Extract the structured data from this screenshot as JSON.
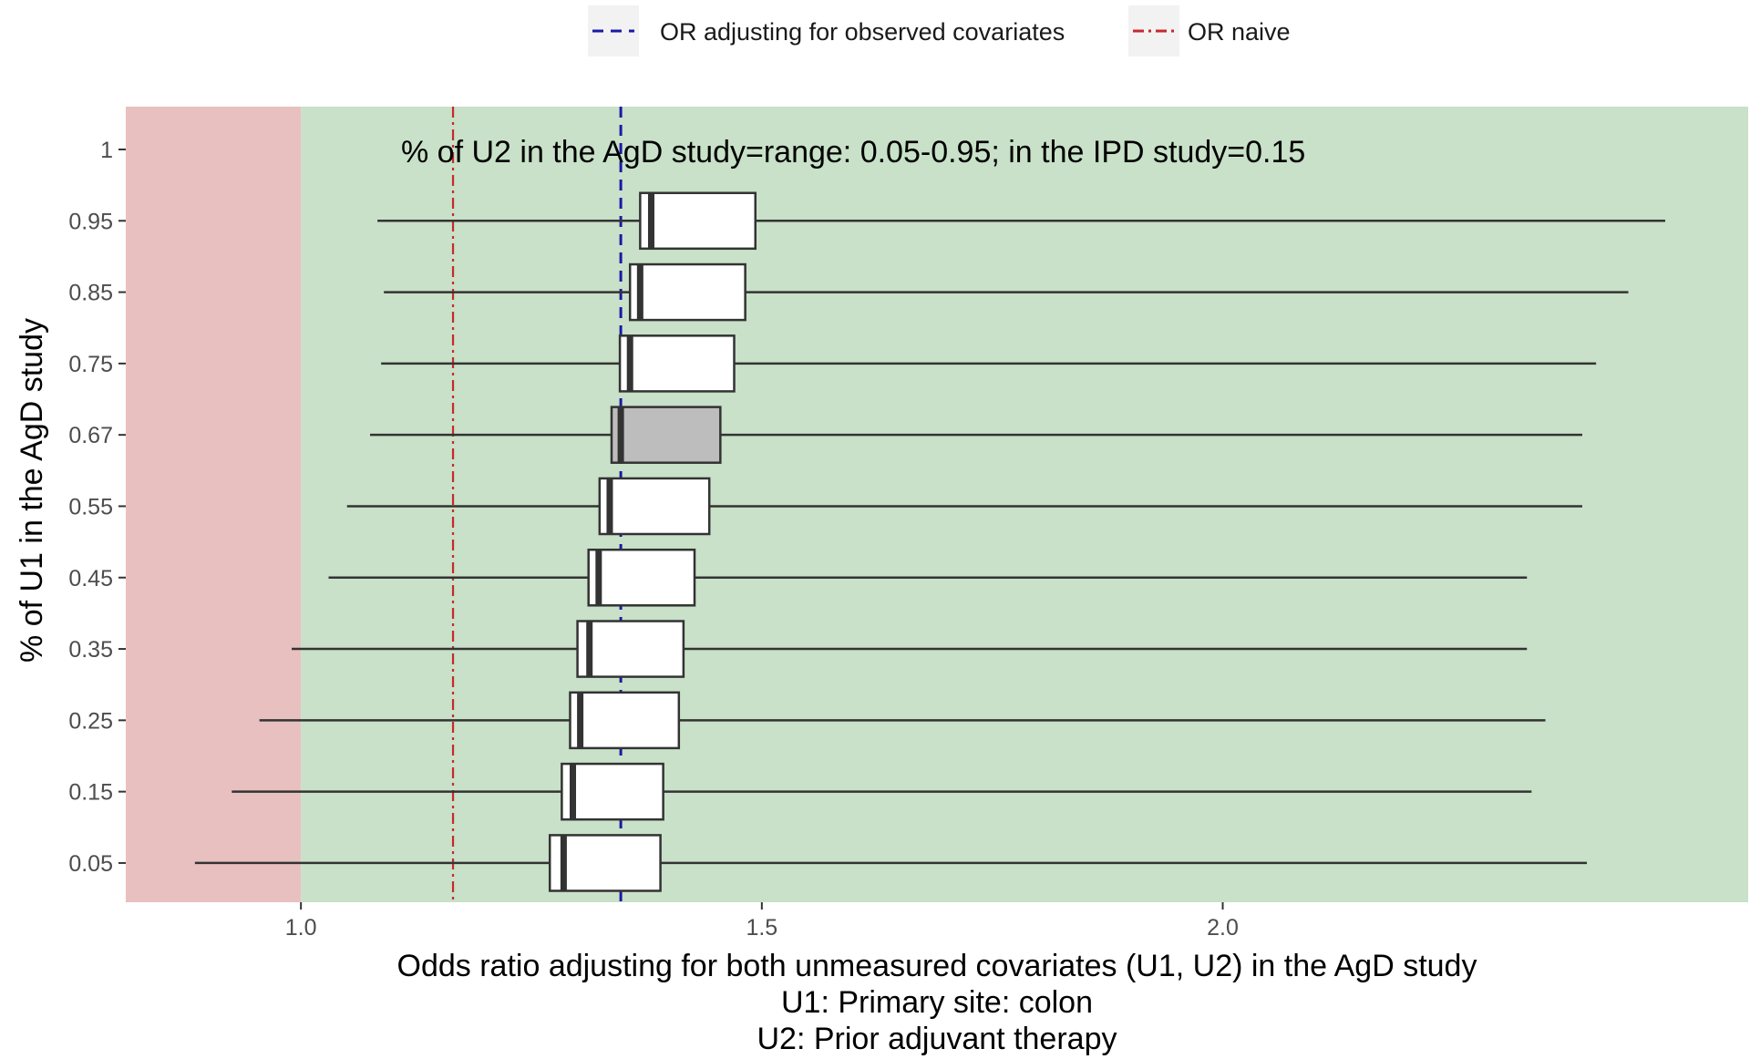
{
  "chart_data": {
    "type": "boxplot",
    "orientation": "horizontal",
    "annotation": "% of U2 in the AgD study=range: 0.05-0.95; in the IPD study=0.15",
    "xlabel_lines": [
      "Odds ratio adjusting for both unmeasured covariates (U1, U2) in the AgD study",
      "U1: Primary site: colon",
      "U2: Prior adjuvant therapy"
    ],
    "ylabel": "% of U1 in the AgD study",
    "xlim": [
      0.81,
      2.57
    ],
    "x_ticks": [
      {
        "value": 1.0,
        "label": "1.0"
      },
      {
        "value": 1.5,
        "label": "1.5"
      },
      {
        "value": 2.0,
        "label": "2.0"
      }
    ],
    "y_categories": [
      "0.05",
      "0.15",
      "0.25",
      "0.35",
      "0.45",
      "0.55",
      "0.67",
      "0.75",
      "0.85",
      "0.95",
      "1"
    ],
    "boxes": [
      {
        "category": "0.05",
        "min": 0.885,
        "q1": 1.27,
        "median": 1.285,
        "q3": 1.39,
        "max": 2.395,
        "highlight": false
      },
      {
        "category": "0.15",
        "min": 0.925,
        "q1": 1.283,
        "median": 1.295,
        "q3": 1.393,
        "max": 2.335,
        "highlight": false
      },
      {
        "category": "0.25",
        "min": 0.955,
        "q1": 1.292,
        "median": 1.303,
        "q3": 1.41,
        "max": 2.35,
        "highlight": false
      },
      {
        "category": "0.35",
        "min": 0.99,
        "q1": 1.3,
        "median": 1.313,
        "q3": 1.415,
        "max": 2.33,
        "highlight": false
      },
      {
        "category": "0.45",
        "min": 1.03,
        "q1": 1.312,
        "median": 1.323,
        "q3": 1.427,
        "max": 2.33,
        "highlight": false
      },
      {
        "category": "0.55",
        "min": 1.05,
        "q1": 1.324,
        "median": 1.335,
        "q3": 1.443,
        "max": 2.39,
        "highlight": false
      },
      {
        "category": "0.67",
        "min": 1.075,
        "q1": 1.337,
        "median": 1.347,
        "q3": 1.455,
        "max": 2.39,
        "highlight": true
      },
      {
        "category": "0.75",
        "min": 1.087,
        "q1": 1.346,
        "median": 1.357,
        "q3": 1.47,
        "max": 2.405,
        "highlight": false
      },
      {
        "category": "0.85",
        "min": 1.09,
        "q1": 1.357,
        "median": 1.368,
        "q3": 1.482,
        "max": 2.44,
        "highlight": false
      },
      {
        "category": "0.95",
        "min": 1.083,
        "q1": 1.368,
        "median": 1.38,
        "q3": 1.493,
        "max": 2.48,
        "highlight": false
      }
    ],
    "reference_lines": [
      {
        "name": "OR adjusting for observed covariates",
        "value": 1.347,
        "color": "#1a1aa6",
        "dash": "dashed"
      },
      {
        "name": "OR naive",
        "value": 1.165,
        "color": "#c8282d",
        "dash": "dotdash"
      }
    ],
    "shaded_regions": [
      {
        "from": 0.81,
        "to": 1.0,
        "color": "#e8c0c0"
      },
      {
        "from": 1.0,
        "to": 2.57,
        "color": "#c8e1c8"
      }
    ],
    "legend_position": "top",
    "grid": false,
    "colors": {
      "box_fill": "#ffffff",
      "box_highlight_fill": "#bdbdbd",
      "box_stroke": "#333333"
    }
  }
}
